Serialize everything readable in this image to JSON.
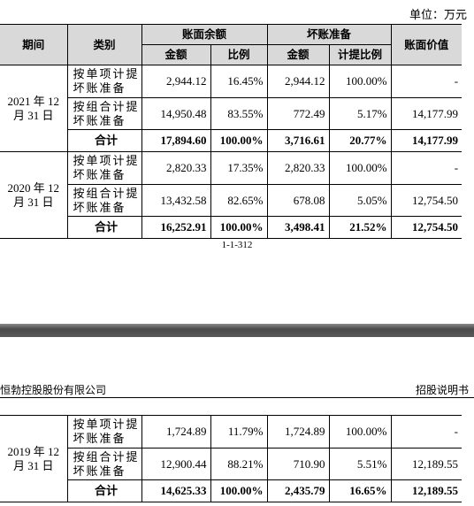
{
  "unit": "单位：万元",
  "table": {
    "header": [
      [
        "期间",
        "类别",
        "账面余额",
        "坏账准备",
        "账面价值"
      ],
      [
        "金额",
        "比例",
        "金额",
        "计提比例"
      ]
    ],
    "groups": [
      {
        "period": "2021 年 12 月 31 日",
        "rows": [
          [
            "按单项计提坏账准备",
            "2,944.12",
            "16.45%",
            "2,944.12",
            "100.00%",
            "-"
          ],
          [
            "按组合计提坏账准备",
            "14,950.48",
            "83.55%",
            "772.49",
            "5.17%",
            "14,177.99"
          ],
          [
            "合计",
            "17,894.60",
            "100.00%",
            "3,716.61",
            "20.77%",
            "14,177.99"
          ]
        ]
      },
      {
        "period": "2020 年 12 月 31 日",
        "rows": [
          [
            "按单项计提坏账准备",
            "2,820.33",
            "17.35%",
            "2,820.33",
            "100.00%",
            "-"
          ],
          [
            "按组合计提坏账准备",
            "13,432.58",
            "82.65%",
            "678.08",
            "5.05%",
            "12,754.50"
          ],
          [
            "合计",
            "16,252.91",
            "100.00%",
            "3,498.41",
            "21.52%",
            "12,754.50"
          ]
        ]
      }
    ]
  },
  "page_number": "1-1-312",
  "next_page": {
    "header_left": "恒勃控股股份有限公司",
    "header_right": "招股说明书",
    "groups": [
      {
        "period": "2019 年 12 月 31 日",
        "rows": [
          [
            "按单项计提坏账准备",
            "1,724.89",
            "11.79%",
            "1,724.89",
            "100.00%",
            "-"
          ],
          [
            "按组合计提坏账准备",
            "12,900.44",
            "88.21%",
            "710.90",
            "5.51%",
            "12,189.55"
          ],
          [
            "合计",
            "14,625.33",
            "100.00%",
            "2,435.79",
            "16.65%",
            "12,189.55"
          ]
        ]
      }
    ]
  }
}
